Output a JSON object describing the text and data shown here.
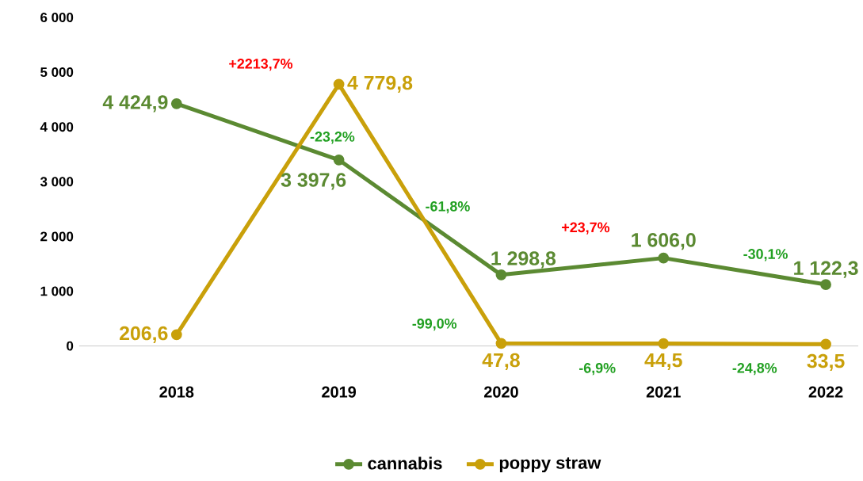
{
  "chart_data": {
    "type": "line",
    "categories": [
      "2018",
      "2019",
      "2020",
      "2021",
      "2022"
    ],
    "series": [
      {
        "name": "cannabis",
        "color": "#5b8a32",
        "values": [
          4424.9,
          3397.6,
          1298.8,
          1606.0,
          1122.3
        ],
        "value_labels": [
          "4 424,9",
          "3 397,6",
          "1 298,8",
          "1 606,0",
          "1 122,3"
        ]
      },
      {
        "name": "poppy straw",
        "color": "#c9a00a",
        "values": [
          206.6,
          4779.8,
          47.8,
          44.5,
          33.5
        ],
        "value_labels": [
          "206,6",
          "4 779,8",
          "47,8",
          "44,5",
          "33,5"
        ]
      }
    ],
    "ylim": [
      0,
      6000
    ],
    "yticks": [
      0,
      {
        "value": 1000,
        "label": "1 000"
      },
      {
        "value": 2000,
        "label": "2 000"
      },
      {
        "value": 3000,
        "label": "3 000"
      },
      {
        "value": 4000,
        "label": "4 000"
      },
      {
        "value": 5000,
        "label": "5 000"
      },
      {
        "value": 6000,
        "label": "6 000"
      }
    ],
    "annotations": [
      "+2213,7%",
      "-23,2%",
      "-61,8%",
      "+23,7%",
      "-30,1%",
      "-99,0%",
      "-6,9%",
      "-24,8%"
    ],
    "marker": "circle",
    "line_style": "solid",
    "legend": "bottom"
  }
}
